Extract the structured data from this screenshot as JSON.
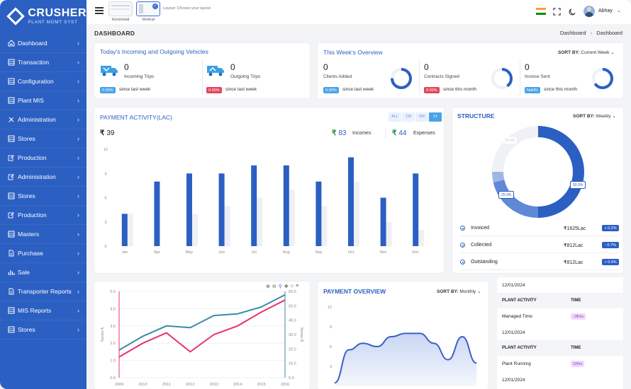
{
  "brand": {
    "title": "CRUSHER",
    "subtitle": "PLANT MGMT SYST"
  },
  "sidebar": {
    "items": [
      {
        "label": "Dashboard",
        "icon": "home-icon"
      },
      {
        "label": "Transaction",
        "icon": "grid-icon"
      },
      {
        "label": "Configuration",
        "icon": "grid-icon"
      },
      {
        "label": "Plant MIS",
        "icon": "grid-icon"
      },
      {
        "label": "Administration",
        "icon": "tools-icon"
      },
      {
        "label": "Stores",
        "icon": "grid-icon"
      },
      {
        "label": "Production",
        "icon": "edit-icon"
      },
      {
        "label": "Administration",
        "icon": "edit-icon"
      },
      {
        "label": "Stores",
        "icon": "grid-icon"
      },
      {
        "label": "Production",
        "icon": "edit-icon"
      },
      {
        "label": "Masters",
        "icon": "grid-icon"
      },
      {
        "label": "Purchase",
        "icon": "document-icon"
      },
      {
        "label": "Sale",
        "icon": "bar-chart-icon"
      },
      {
        "label": "Transporter Reports",
        "icon": "document-icon"
      },
      {
        "label": "MIS Reports",
        "icon": "grid-icon"
      },
      {
        "label": "Stores",
        "icon": "grid-icon"
      }
    ]
  },
  "topbar": {
    "layout_options": [
      "Horizontal",
      "Vertical"
    ],
    "layout_label": "Layout: Choose your layout",
    "user_name": "Abhay"
  },
  "page": {
    "title": "DASHBOARD",
    "breadcrumb": [
      "Dashboard",
      "Dashboard"
    ]
  },
  "vehicles": {
    "title": "Today's Incoming and Outgoing Vehicles",
    "incoming": {
      "count": "0",
      "label": "Incoming Trips",
      "badge": "0.00%",
      "since": "since last week"
    },
    "outgoing": {
      "count": "0",
      "label": "Outgoing Trips",
      "badge": "0.00%",
      "since": "since last week"
    }
  },
  "overview": {
    "title": "This Week's Overview",
    "sort_prefix": "SORT BY:",
    "sort_value": "Current Week",
    "stats": [
      {
        "count": "0",
        "label": "Clients Added",
        "badge": "0.00%",
        "since": "since last week",
        "badge_color": "#4aa3e8",
        "fill": 0.75
      },
      {
        "count": "0",
        "label": "Contracts Signed",
        "badge": "0.00%",
        "since": "since this month",
        "badge_color": "#e2465c",
        "fill": 0.4
      },
      {
        "count": "0",
        "label": "Invoice Sent",
        "badge": "NaN%",
        "since": "since this month",
        "badge_color": "#4aa3e8",
        "fill": 0.65
      }
    ]
  },
  "payment_activity": {
    "title": "PAYMENT ACTIVITY(LAC)",
    "ranges": [
      "ALL",
      "1M",
      "6M",
      "1Y"
    ],
    "active_range": "1Y",
    "total": "39",
    "incomes": "83",
    "incomes_label": "Incomes",
    "expenses": "44",
    "expenses_label": "Expenses",
    "currency": "₹"
  },
  "structure": {
    "title": "STRUCTURE",
    "sort_prefix": "SORT BY:",
    "sort_value": "Weekly",
    "rows": [
      {
        "name": "Invoiced",
        "amount": "₹1625Lac",
        "change": "+ 0.2%"
      },
      {
        "name": "Collected",
        "amount": "₹812Lac",
        "change": "- 0.7%"
      },
      {
        "name": "Outstanding",
        "amount": "₹812Lac",
        "change": "+ 0.4%"
      }
    ]
  },
  "payment_overview": {
    "title": "PAYMENT OVERVIEW",
    "sort_prefix": "SORT BY:",
    "sort_value": "Monthly"
  },
  "activity_table": {
    "blocks": [
      {
        "date": "12/01/2024",
        "col1": "PLANT ACTIVITY",
        "col2": "TIME",
        "activity": "Managed Time",
        "time": "-18Hrs"
      },
      {
        "date": "12/01/2024",
        "col1": "PLANT ACTIVITY",
        "col2": "TIME",
        "activity": "Plant Running",
        "time": "13Hrs"
      }
    ],
    "trailing_date": "12/01/2024"
  },
  "chart_data": [
    {
      "type": "bar",
      "categories": [
        "Jan",
        "Apr",
        "May",
        "Jun",
        "Jul",
        "Aug",
        "Sep",
        "Oct",
        "Nov",
        "Dec"
      ],
      "ylim": [
        0,
        12
      ],
      "yticks": [
        0,
        3,
        6,
        9,
        12
      ],
      "series": [
        {
          "values": [
            4,
            8,
            9,
            9,
            10,
            10,
            8,
            11,
            6,
            9
          ],
          "color": "#2c5fc2"
        },
        {
          "values": [
            4,
            0,
            4,
            5,
            6,
            7,
            5,
            8,
            3,
            2
          ],
          "color": "#eef0f4"
        }
      ],
      "legend": "none",
      "grid": false
    },
    {
      "type": "line",
      "x": [
        2009,
        2010,
        2011,
        2012,
        2013,
        2014,
        2015,
        2016
      ],
      "ylim_left": [
        0,
        5
      ],
      "ylim_right": [
        0,
        60
      ],
      "left_ticks": [
        "0.0",
        "1.0",
        "2.0",
        "3.0",
        "4.0",
        "5.0"
      ],
      "right_ticks": [
        "0.0",
        "10.0",
        "20.0",
        "30.0",
        "40.0",
        "50.0",
        "60.0"
      ],
      "ylabel_left": "Series A",
      "ylabel_right": "Series B",
      "series": [
        {
          "axis": "left",
          "values": [
            1.6,
            2.4,
            3.0,
            2.9,
            3.6,
            3.7,
            4.1,
            4.8
          ],
          "color": "#3a8ba8"
        },
        {
          "axis": "left",
          "values": [
            1.2,
            2.0,
            2.6,
            1.5,
            2.5,
            3.0,
            3.8,
            4.5
          ],
          "color": "#e8336f"
        }
      ],
      "grid": true
    },
    {
      "type": "area",
      "yticks": [
        3,
        6,
        9,
        12
      ],
      "ylim": [
        0,
        12
      ],
      "x": [
        0,
        1,
        2,
        3,
        4,
        5,
        6,
        7,
        8,
        9,
        10
      ],
      "series": [
        {
          "values": [
            0.5,
            5.5,
            6.5,
            6.0,
            7.5,
            8.0,
            8.0,
            6.5,
            4.0,
            7.5,
            3.5
          ],
          "color": "#3b5fc8"
        }
      ]
    }
  ],
  "colors": {
    "primary": "#2c5fc2",
    "accent": "#4aa3e8",
    "danger": "#e2465c"
  }
}
